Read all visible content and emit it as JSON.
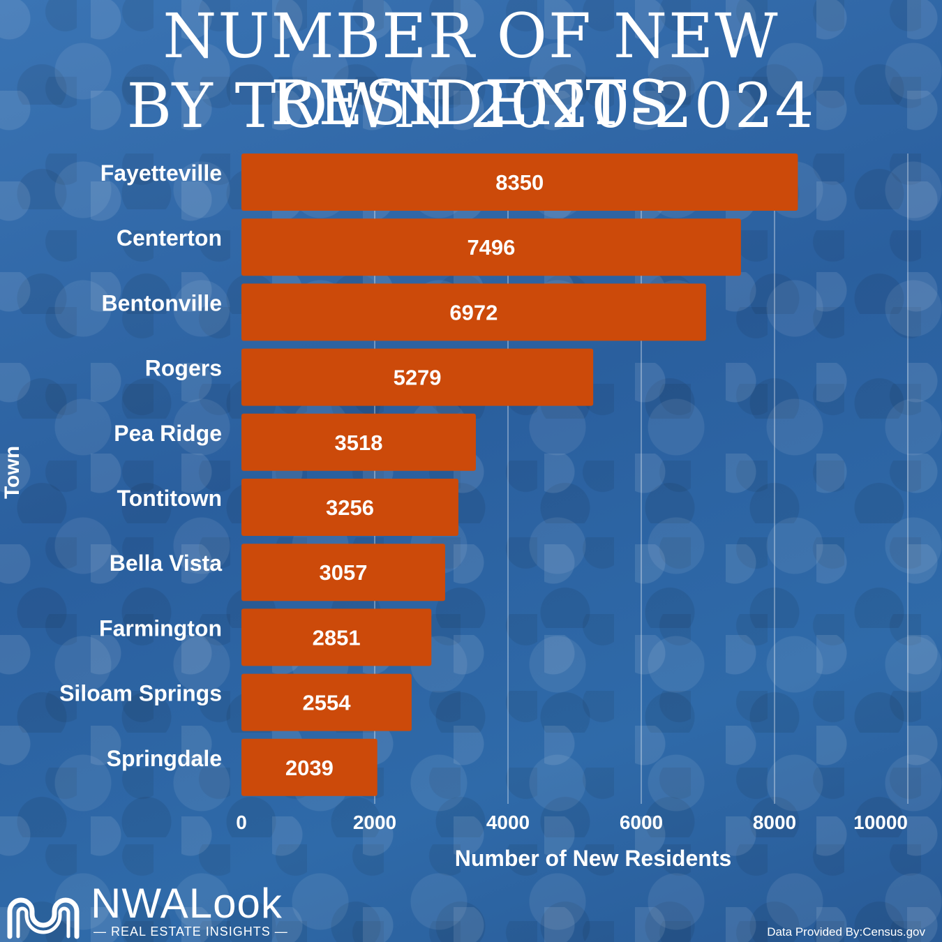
{
  "header": {
    "title_line1": "NUMBER OF NEW RESIDENTS",
    "title_line2": "BY TOWN 2020-2024"
  },
  "chart_data": {
    "type": "bar",
    "orientation": "horizontal",
    "categories": [
      "Fayetteville",
      "Centerton",
      "Bentonville",
      "Rogers",
      "Pea Ridge",
      "Tontitown",
      "Bella Vista",
      "Farmington",
      "Siloam Springs",
      "Springdale"
    ],
    "values": [
      8350,
      7496,
      6972,
      5279,
      3518,
      3256,
      3057,
      2851,
      2554,
      2039
    ],
    "xlabel": "Number of New Residents",
    "ylabel": "Town",
    "xlim": [
      0,
      10000
    ],
    "xticks": [
      "0",
      "2000",
      "4000",
      "6000",
      "8000",
      "10000"
    ],
    "grid": "vertical",
    "bar_color": "#cc4a0a",
    "data_labels": "inside-center"
  },
  "branding": {
    "logo_text": "NWALook",
    "logo_subtitle": "REAL ESTATE INSIGHTS",
    "credit": "Data Provided By:Census.gov"
  }
}
